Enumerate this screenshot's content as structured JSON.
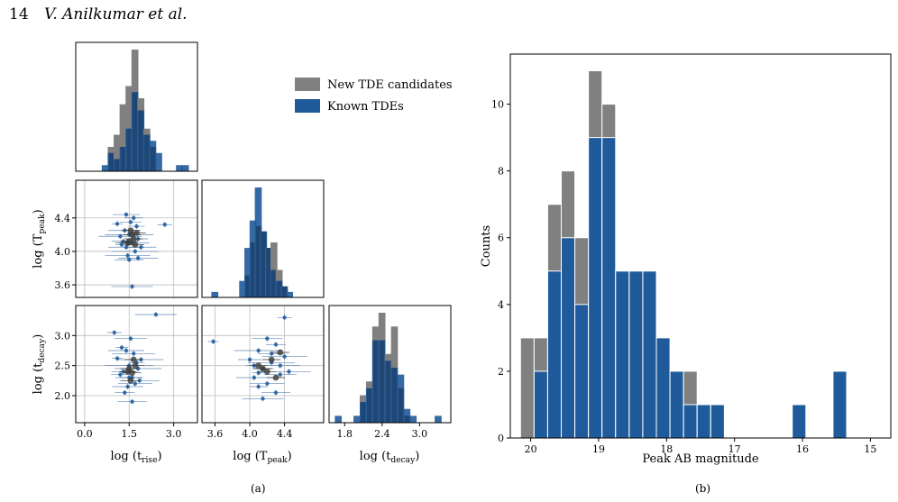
{
  "header": {
    "page_number": "14",
    "authors": "V. Anilkumar et al."
  },
  "panel_a_caption": "(a)",
  "panel_b_caption": "(b)",
  "colors": {
    "new_tde": "#808080",
    "known_tde": "#1f5a9b",
    "overlap": "#17345a"
  },
  "chart_data": [
    {
      "type": "corner",
      "panel": "a",
      "legend": {
        "entries": [
          "New TDE candidates",
          "Known TDEs"
        ],
        "placement": "top-right"
      },
      "variables": [
        "log(t_rise)",
        "log(T_peak)",
        "log(t_decay)"
      ],
      "axis_labels": {
        "x": [
          "log (t",
          "rise",
          ")",
          "log (T",
          "peak",
          ")",
          "log (t",
          "decay",
          ")"
        ],
        "y": [
          "log (T",
          "peak",
          ")",
          "log (t",
          "decay",
          ")"
        ]
      },
      "x_ticks": {
        "trise": [
          "0.0",
          "1.5",
          "3.0"
        ],
        "tpeak": [
          "3.6",
          "4.0",
          "4.4"
        ],
        "tdecay": [
          "1.8",
          "2.4",
          "3.0"
        ]
      },
      "y_ticks": {
        "tpeak": [
          "3.6",
          "4.0",
          "4.4"
        ],
        "tdecay": [
          "2.0",
          "2.5",
          "3.0"
        ]
      },
      "ranges": {
        "trise": [
          -0.3,
          3.8
        ],
        "tpeak": [
          3.45,
          4.85
        ],
        "tdecay": [
          1.55,
          3.5
        ]
      },
      "hist_trise": {
        "bins": [
          0.7,
          0.9,
          1.1,
          1.3,
          1.5,
          1.7,
          1.9,
          2.1,
          2.3,
          2.5,
          3.2,
          3.4
        ],
        "known": [
          1,
          3,
          2,
          4,
          7,
          13,
          10,
          6,
          5,
          3,
          1,
          1
        ],
        "new": [
          0,
          4,
          6,
          11,
          14,
          20,
          12,
          7,
          4,
          0,
          0,
          0
        ]
      },
      "hist_tpeak": {
        "bins": [
          3.6,
          3.92,
          3.98,
          4.04,
          4.1,
          4.16,
          4.22,
          4.28,
          4.34,
          4.4,
          4.46
        ],
        "known": [
          1,
          3,
          9,
          14,
          20,
          12,
          9,
          5,
          3,
          2,
          1
        ],
        "new": [
          0,
          0,
          4,
          10,
          13,
          12,
          9,
          10,
          5,
          2,
          0
        ]
      },
      "hist_tdecay": {
        "bins": [
          1.7,
          2.0,
          2.1,
          2.2,
          2.3,
          2.4,
          2.5,
          2.6,
          2.7,
          2.8,
          2.9,
          3.3
        ],
        "known": [
          1,
          1,
          3,
          5,
          12,
          12,
          9,
          8,
          7,
          2,
          1,
          1
        ],
        "new": [
          0,
          0,
          4,
          6,
          14,
          16,
          10,
          14,
          5,
          1,
          0,
          0
        ]
      },
      "scatter_known": [
        [
          1.1,
          4.33
        ],
        [
          1.3,
          4.12
        ],
        [
          1.4,
          4.05
        ],
        [
          1.5,
          4.2
        ],
        [
          1.55,
          4.35
        ],
        [
          1.6,
          4.1
        ],
        [
          1.7,
          4.0
        ],
        [
          1.8,
          4.15
        ],
        [
          1.35,
          4.25
        ],
        [
          1.45,
          3.95
        ],
        [
          1.65,
          4.4
        ],
        [
          1.9,
          4.05
        ],
        [
          1.2,
          4.18
        ],
        [
          1.75,
          4.3
        ],
        [
          1.5,
          3.9
        ],
        [
          1.6,
          3.58
        ],
        [
          2.7,
          4.32
        ],
        [
          1.4,
          4.44
        ],
        [
          1.8,
          3.92
        ],
        [
          1.25,
          4.08
        ]
      ],
      "scatter_new": [
        [
          1.5,
          4.12
        ],
        [
          1.6,
          4.2
        ],
        [
          1.7,
          4.08
        ],
        [
          1.55,
          4.25
        ],
        [
          1.65,
          4.15
        ],
        [
          1.45,
          4.1
        ],
        [
          1.75,
          4.22
        ]
      ],
      "scatter2_known": [
        [
          1.1,
          2.62
        ],
        [
          1.3,
          2.4
        ],
        [
          1.4,
          2.75
        ],
        [
          1.5,
          2.5
        ],
        [
          1.6,
          2.3
        ],
        [
          1.7,
          2.2
        ],
        [
          1.8,
          2.45
        ],
        [
          1.35,
          2.05
        ],
        [
          1.55,
          2.95
        ],
        [
          1.9,
          2.6
        ],
        [
          1.2,
          2.35
        ],
        [
          1.45,
          2.15
        ],
        [
          1.65,
          2.7
        ],
        [
          1.75,
          2.55
        ],
        [
          1.6,
          1.9
        ],
        [
          2.4,
          3.35
        ],
        [
          1.0,
          3.05
        ],
        [
          1.5,
          2.3
        ],
        [
          1.85,
          2.25
        ],
        [
          1.25,
          2.8
        ]
      ],
      "scatter2_new": [
        [
          1.5,
          2.45
        ],
        [
          1.6,
          2.38
        ],
        [
          1.7,
          2.5
        ],
        [
          1.55,
          2.25
        ],
        [
          1.65,
          2.6
        ],
        [
          1.45,
          2.4
        ]
      ],
      "scatter3_known": [
        [
          3.58,
          2.9
        ],
        [
          4.0,
          2.6
        ],
        [
          4.05,
          2.3
        ],
        [
          4.1,
          2.75
        ],
        [
          4.15,
          2.45
        ],
        [
          4.2,
          2.2
        ],
        [
          4.25,
          2.55
        ],
        [
          4.3,
          2.85
        ],
        [
          4.35,
          2.35
        ],
        [
          4.4,
          2.65
        ],
        [
          4.1,
          2.15
        ],
        [
          4.2,
          2.95
        ],
        [
          4.45,
          2.4
        ],
        [
          4.05,
          2.5
        ],
        [
          4.3,
          2.05
        ],
        [
          4.15,
          1.95
        ],
        [
          4.4,
          3.3
        ],
        [
          4.25,
          2.7
        ],
        [
          4.35,
          2.5
        ],
        [
          4.1,
          2.38
        ]
      ],
      "scatter3_new": [
        [
          4.1,
          2.5
        ],
        [
          4.2,
          2.4
        ],
        [
          4.25,
          2.6
        ],
        [
          4.15,
          2.45
        ],
        [
          4.3,
          2.3
        ],
        [
          4.35,
          2.72
        ]
      ]
    },
    {
      "type": "bar",
      "panel": "b",
      "xlabel": "Peak AB magnitude",
      "ylabel": "Counts",
      "x_ticks": [
        "20",
        "19",
        "18",
        "17",
        "16",
        "15"
      ],
      "y_ticks": [
        "0",
        "2",
        "4",
        "6",
        "8",
        "10"
      ],
      "xlim": [
        20.3,
        14.7
      ],
      "ylim": [
        0,
        11.5
      ],
      "bin_left_edges": [
        20.15,
        19.95,
        19.75,
        19.55,
        19.35,
        19.15,
        18.95,
        18.75,
        18.55,
        18.35,
        18.15,
        17.95,
        17.75,
        17.55,
        17.35,
        17.15,
        16.15,
        15.55
      ],
      "bin_width": 0.2,
      "known": [
        0,
        2,
        5,
        6,
        4,
        9,
        9,
        5,
        5,
        5,
        3,
        2,
        1,
        1,
        1,
        0,
        1,
        2
      ],
      "total": [
        3,
        3,
        7,
        8,
        6,
        11,
        10,
        5,
        5,
        5,
        3,
        2,
        2,
        1,
        1,
        0,
        1,
        2
      ]
    }
  ]
}
